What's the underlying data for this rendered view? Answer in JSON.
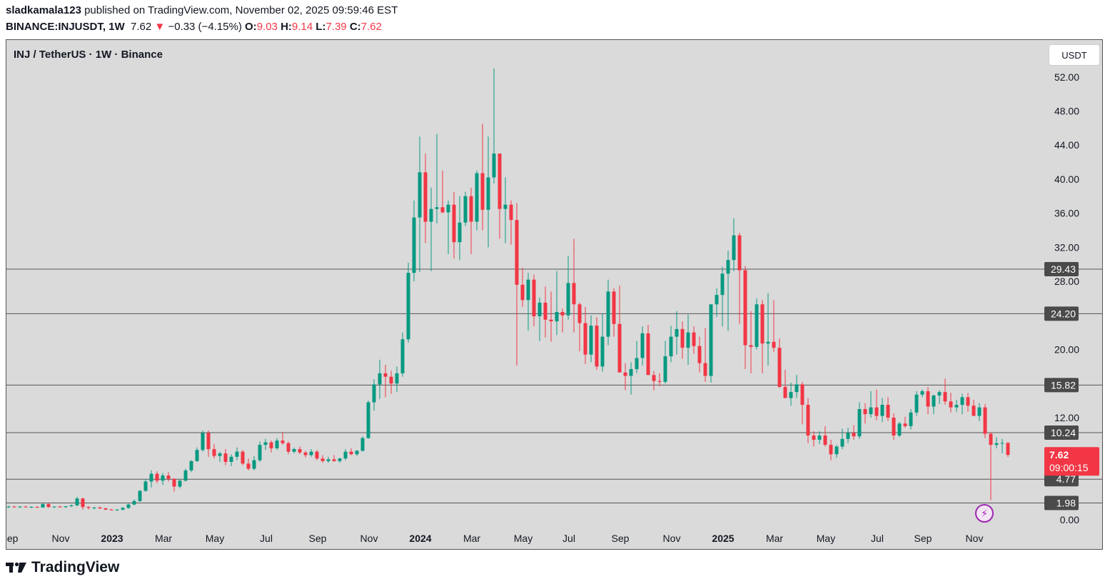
{
  "header": {
    "user": "sladkamala123",
    "published_text": "published on TradingView.com, November 02, 2025 09:59:46 EST",
    "symbol_line": "BINANCE:INJUSDT, 1W",
    "last_price": "7.62",
    "change_arrow": "▼",
    "change": "−0.33 (−4.15%)",
    "open_label": "O:",
    "open": "9.03",
    "high_label": "H:",
    "high": "9.14",
    "low_label": "L:",
    "low": "7.39",
    "close_label": "C:",
    "close": "7.62"
  },
  "chart_title": "INJ / TetherUS · 1W · Binance",
  "currency_button": "USDT",
  "brand": "TradingView",
  "colors": {
    "up": "#089981",
    "down": "#f23645",
    "background": "#dadada",
    "level_label_bg": "#4a4a4a",
    "price_label_bg": "#f23645"
  },
  "chart_data": {
    "type": "candlestick",
    "title": "INJ / TetherUS · 1W · Binance",
    "ylim": [
      -1.5,
      55.5
    ],
    "y_ticks": [
      "0.00",
      "12.00",
      "20.00",
      "28.00",
      "32.00",
      "36.00",
      "40.00",
      "44.00",
      "48.00",
      "52.00"
    ],
    "y_tick_values": [
      0,
      12,
      20,
      28,
      32,
      36,
      40,
      44,
      48,
      52
    ],
    "x_labels": [
      "Sep",
      "Nov",
      "2023",
      "Mar",
      "May",
      "Jul",
      "Sep",
      "Nov",
      "2024",
      "Mar",
      "May",
      "Jul",
      "Sep",
      "Nov",
      "2025",
      "Mar",
      "May",
      "Jul",
      "Sep",
      "Nov"
    ],
    "x_label_bold": [
      false,
      false,
      true,
      false,
      false,
      false,
      false,
      false,
      true,
      false,
      false,
      false,
      false,
      false,
      true,
      false,
      false,
      false,
      false,
      false
    ],
    "x_label_weeks": [
      0,
      9,
      18,
      27,
      36,
      45,
      54,
      63,
      72,
      81,
      90,
      98,
      107,
      116,
      125,
      134,
      143,
      152,
      160,
      169
    ],
    "horizontal_levels": [
      29.43,
      24.2,
      15.82,
      10.24,
      4.77,
      1.98
    ],
    "horizontal_level_labels": [
      "29.43",
      "24.20",
      "15.82",
      "10.24",
      "4.77",
      "1.98"
    ],
    "last_price": 7.62,
    "last_price_label": "7.62",
    "countdown": "09:00:15",
    "candles_ohlc": [
      [
        1.5,
        1.65,
        1.4,
        1.55
      ],
      [
        1.55,
        1.65,
        1.45,
        1.5
      ],
      [
        1.5,
        1.6,
        1.4,
        1.55
      ],
      [
        1.55,
        1.65,
        1.45,
        1.48
      ],
      [
        1.48,
        1.58,
        1.38,
        1.52
      ],
      [
        1.52,
        1.6,
        1.4,
        1.45
      ],
      [
        1.45,
        1.95,
        1.4,
        1.85
      ],
      [
        1.85,
        1.95,
        1.4,
        1.5
      ],
      [
        1.5,
        1.6,
        1.4,
        1.55
      ],
      [
        1.55,
        1.65,
        1.45,
        1.5
      ],
      [
        1.5,
        1.6,
        1.4,
        1.6
      ],
      [
        1.6,
        1.8,
        1.5,
        1.7
      ],
      [
        1.7,
        2.7,
        1.6,
        2.5
      ],
      [
        2.5,
        2.6,
        1.2,
        1.5
      ],
      [
        1.5,
        1.6,
        1.2,
        1.4
      ],
      [
        1.4,
        1.5,
        1.2,
        1.45
      ],
      [
        1.45,
        1.55,
        1.25,
        1.35
      ],
      [
        1.35,
        1.4,
        1.15,
        1.2
      ],
      [
        1.2,
        1.3,
        1.1,
        1.15
      ],
      [
        1.15,
        1.25,
        1.05,
        1.2
      ],
      [
        1.2,
        1.5,
        1.1,
        1.4
      ],
      [
        1.4,
        1.9,
        1.3,
        1.8
      ],
      [
        1.8,
        2.4,
        1.7,
        2.2
      ],
      [
        2.2,
        3.5,
        2.1,
        3.4
      ],
      [
        3.4,
        4.8,
        3.3,
        4.5
      ],
      [
        4.5,
        5.8,
        3.8,
        5.4
      ],
      [
        5.4,
        5.7,
        4.3,
        4.6
      ],
      [
        4.6,
        5.5,
        4.1,
        5.2
      ],
      [
        5.2,
        5.6,
        4.5,
        4.8
      ],
      [
        4.8,
        4.9,
        3.3,
        3.9
      ],
      [
        3.9,
        4.8,
        3.7,
        4.6
      ],
      [
        4.6,
        6.0,
        4.5,
        5.8
      ],
      [
        5.8,
        7.0,
        5.6,
        6.9
      ],
      [
        6.9,
        8.5,
        6.8,
        8.2
      ],
      [
        8.2,
        10.5,
        8.0,
        10.2
      ],
      [
        10.2,
        10.5,
        7.4,
        8.3
      ],
      [
        8.3,
        8.9,
        7.2,
        7.5
      ],
      [
        7.5,
        8.0,
        6.8,
        7.8
      ],
      [
        7.8,
        8.3,
        6.4,
        6.8
      ],
      [
        6.8,
        7.7,
        6.3,
        7.4
      ],
      [
        7.4,
        8.5,
        7.0,
        8.0
      ],
      [
        8.0,
        8.2,
        6.4,
        6.6
      ],
      [
        6.6,
        7.2,
        5.8,
        6.0
      ],
      [
        6.0,
        7.5,
        5.8,
        7.0
      ],
      [
        7.0,
        9.2,
        6.8,
        8.8
      ],
      [
        8.8,
        9.5,
        8.2,
        9.1
      ],
      [
        9.1,
        9.3,
        7.9,
        8.4
      ],
      [
        8.4,
        9.6,
        8.2,
        9.3
      ],
      [
        9.3,
        10.3,
        8.8,
        9.0
      ],
      [
        9.0,
        9.2,
        7.7,
        8.0
      ],
      [
        8.0,
        8.5,
        7.8,
        8.3
      ],
      [
        8.3,
        8.6,
        7.7,
        7.9
      ],
      [
        7.9,
        8.1,
        7.3,
        7.6
      ],
      [
        7.6,
        8.3,
        7.4,
        8.0
      ],
      [
        8.0,
        8.2,
        7.0,
        7.2
      ],
      [
        7.2,
        7.6,
        6.7,
        6.9
      ],
      [
        6.9,
        7.4,
        6.7,
        7.1
      ],
      [
        7.1,
        7.6,
        6.8,
        6.9
      ],
      [
        6.9,
        7.3,
        6.7,
        7.2
      ],
      [
        7.2,
        8.3,
        7.0,
        8.0
      ],
      [
        8.0,
        8.4,
        7.6,
        7.7
      ],
      [
        7.7,
        8.2,
        7.5,
        8.1
      ],
      [
        8.1,
        9.8,
        8.0,
        9.6
      ],
      [
        9.6,
        14.0,
        9.5,
        13.8
      ],
      [
        13.8,
        16.5,
        12.8,
        15.9
      ],
      [
        15.9,
        18.8,
        14.2,
        17.2
      ],
      [
        17.2,
        18.2,
        14.4,
        16.8
      ],
      [
        16.8,
        17.5,
        14.8,
        16.0
      ],
      [
        16.0,
        18.0,
        15.0,
        17.2
      ],
      [
        17.2,
        22.0,
        16.8,
        21.2
      ],
      [
        21.2,
        30.2,
        20.8,
        29.0
      ],
      [
        29.0,
        37.5,
        28.0,
        35.5
      ],
      [
        35.5,
        45.0,
        29.1,
        40.8
      ],
      [
        40.8,
        43.0,
        32.5,
        35.0
      ],
      [
        35.0,
        39.0,
        29.2,
        36.5
      ],
      [
        36.5,
        45.3,
        34.8,
        36.7
      ],
      [
        36.7,
        41.0,
        36.0,
        36.1
      ],
      [
        36.1,
        37.5,
        31.2,
        37.0
      ],
      [
        37.0,
        38.5,
        30.7,
        32.6
      ],
      [
        32.6,
        38.0,
        30.5,
        34.9
      ],
      [
        34.9,
        38.5,
        34.5,
        38.0
      ],
      [
        38.0,
        39.0,
        31.2,
        35.0
      ],
      [
        35.0,
        41.0,
        34.0,
        40.7
      ],
      [
        40.7,
        46.5,
        34.0,
        36.4
      ],
      [
        36.4,
        45.0,
        32.0,
        40.2
      ],
      [
        40.2,
        53.0,
        39.5,
        43.0
      ],
      [
        43.0,
        43.0,
        33.0,
        36.5
      ],
      [
        36.5,
        40.2,
        32.5,
        37.0
      ],
      [
        37.0,
        37.5,
        32.3,
        35.2
      ],
      [
        35.2,
        37.2,
        18.1,
        27.6
      ],
      [
        27.6,
        29.6,
        25.0,
        25.8
      ],
      [
        25.8,
        29.0,
        22.2,
        28.2
      ],
      [
        28.2,
        28.8,
        22.7,
        23.9
      ],
      [
        23.9,
        26.1,
        21.0,
        25.5
      ],
      [
        25.5,
        27.4,
        21.4,
        23.5
      ],
      [
        23.5,
        26.8,
        20.9,
        23.3
      ],
      [
        23.3,
        29.2,
        21.7,
        24.4
      ],
      [
        24.4,
        24.8,
        22.0,
        24.0
      ],
      [
        24.0,
        31.0,
        23.5,
        27.8
      ],
      [
        27.8,
        33.0,
        22.0,
        25.3
      ],
      [
        25.3,
        25.5,
        19.8,
        23.1
      ],
      [
        23.1,
        25.0,
        18.3,
        19.4
      ],
      [
        19.4,
        24.0,
        18.5,
        22.8
      ],
      [
        22.8,
        23.8,
        17.6,
        18.0
      ],
      [
        18.0,
        24.2,
        17.4,
        21.5
      ],
      [
        21.5,
        28.2,
        20.5,
        26.8
      ],
      [
        26.8,
        27.2,
        21.5,
        23.0
      ],
      [
        23.0,
        27.5,
        17.9,
        17.3
      ],
      [
        17.3,
        18.4,
        15.2,
        16.9
      ],
      [
        16.9,
        18.5,
        14.7,
        17.7
      ],
      [
        17.7,
        21.0,
        17.2,
        19.0
      ],
      [
        19.0,
        22.7,
        18.1,
        21.9
      ],
      [
        21.9,
        22.9,
        17.3,
        17.0
      ],
      [
        17.0,
        17.5,
        15.2,
        16.3
      ],
      [
        16.3,
        17.2,
        15.7,
        16.2
      ],
      [
        16.2,
        21.0,
        16.0,
        19.2
      ],
      [
        19.2,
        22.8,
        18.5,
        21.5
      ],
      [
        21.5,
        24.5,
        19.4,
        22.4
      ],
      [
        22.4,
        23.3,
        18.9,
        20.2
      ],
      [
        20.2,
        24.1,
        18.2,
        22.0
      ],
      [
        22.0,
        22.7,
        19.5,
        20.4
      ],
      [
        20.4,
        21.5,
        17.3,
        18.4
      ],
      [
        18.4,
        22.5,
        16.2,
        16.9
      ],
      [
        16.9,
        25.0,
        16.1,
        25.3
      ],
      [
        25.3,
        27.2,
        23.8,
        26.4
      ],
      [
        26.4,
        29.7,
        22.7,
        28.9
      ],
      [
        28.9,
        31.6,
        22.2,
        30.5
      ],
      [
        30.5,
        35.4,
        29.2,
        33.4
      ],
      [
        33.4,
        33.7,
        23.0,
        29.3
      ],
      [
        29.3,
        29.8,
        17.7,
        20.5
      ],
      [
        20.5,
        24.5,
        17.2,
        20.3
      ],
      [
        20.3,
        26.0,
        20.0,
        25.3
      ],
      [
        25.3,
        25.8,
        17.2,
        20.7
      ],
      [
        20.7,
        26.6,
        18.1,
        20.9
      ],
      [
        20.9,
        25.8,
        19.7,
        20.2
      ],
      [
        20.2,
        21.3,
        15.5,
        15.6
      ],
      [
        15.6,
        17.6,
        14.4,
        14.3
      ],
      [
        14.3,
        16.1,
        13.4,
        15.0
      ],
      [
        15.0,
        17.0,
        14.3,
        15.9
      ],
      [
        15.9,
        16.2,
        11.2,
        13.5
      ],
      [
        13.5,
        14.3,
        9.0,
        9.9
      ],
      [
        9.9,
        10.4,
        8.6,
        9.4
      ],
      [
        9.4,
        10.4,
        8.9,
        9.9
      ],
      [
        9.9,
        11.0,
        8.6,
        8.8
      ],
      [
        8.8,
        9.4,
        7.0,
        7.7
      ],
      [
        7.7,
        8.8,
        7.3,
        8.6
      ],
      [
        8.6,
        10.7,
        8.3,
        9.5
      ],
      [
        9.5,
        10.8,
        9.0,
        10.2
      ],
      [
        10.2,
        11.1,
        9.4,
        9.8
      ],
      [
        9.8,
        13.8,
        9.5,
        13.0
      ],
      [
        13.0,
        13.7,
        11.3,
        12.4
      ],
      [
        12.4,
        15.1,
        12.0,
        13.2
      ],
      [
        13.2,
        15.3,
        11.7,
        12.2
      ],
      [
        12.2,
        14.3,
        11.5,
        13.5
      ],
      [
        13.5,
        14.4,
        11.6,
        12.0
      ],
      [
        12.0,
        12.5,
        9.4,
        9.9
      ],
      [
        9.9,
        11.5,
        9.7,
        11.3
      ],
      [
        11.3,
        12.1,
        10.8,
        11.0
      ],
      [
        11.0,
        13.0,
        10.6,
        12.6
      ],
      [
        12.6,
        15.1,
        12.2,
        14.7
      ],
      [
        14.7,
        15.3,
        14.4,
        15.1
      ],
      [
        15.1,
        15.6,
        12.4,
        13.3
      ],
      [
        13.3,
        14.7,
        12.4,
        14.6
      ],
      [
        14.6,
        15.2,
        13.6,
        15.0
      ],
      [
        15.0,
        16.6,
        13.5,
        13.9
      ],
      [
        13.9,
        14.9,
        12.6,
        13.2
      ],
      [
        13.2,
        14.1,
        12.7,
        13.5
      ],
      [
        13.5,
        14.8,
        12.4,
        14.4
      ],
      [
        14.4,
        14.9,
        12.7,
        13.4
      ],
      [
        13.4,
        14.1,
        12.2,
        12.2
      ],
      [
        12.2,
        13.7,
        11.6,
        13.2
      ],
      [
        13.2,
        13.6,
        9.6,
        10.1
      ],
      [
        10.1,
        10.3,
        2.3,
        8.8
      ],
      [
        8.8,
        9.7,
        8.4,
        9.0
      ],
      [
        9.0,
        9.5,
        7.8,
        9.03
      ],
      [
        9.03,
        9.14,
        7.39,
        7.62
      ]
    ]
  }
}
